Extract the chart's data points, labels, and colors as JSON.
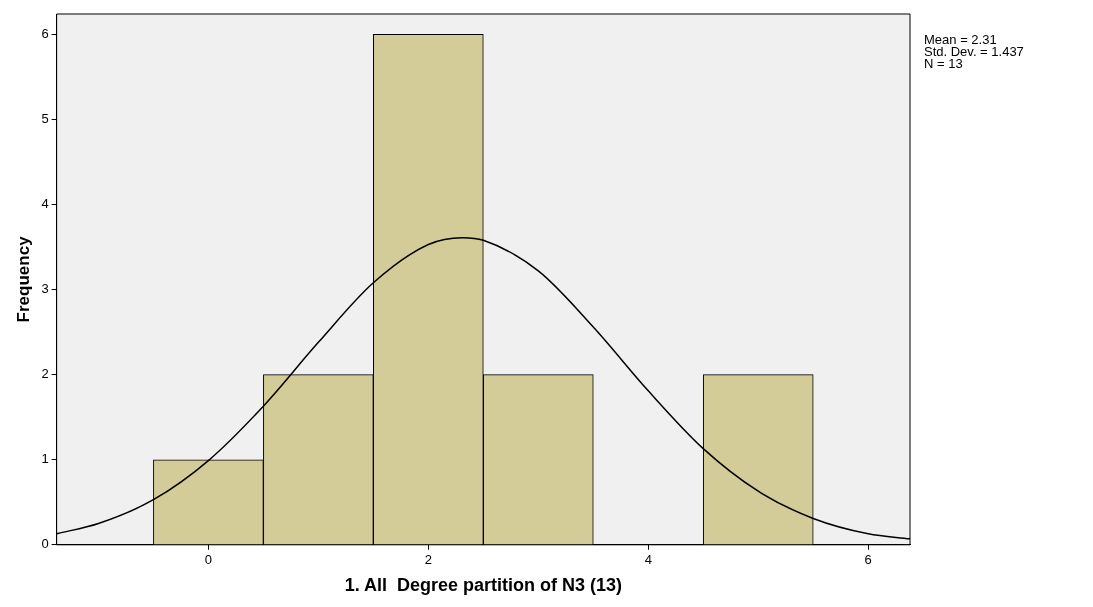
{
  "chart_data": {
    "type": "histogram",
    "xlabel": "1. All  Degree partition of N3 (13)",
    "ylabel": "Frequency",
    "bins": [
      -0.5,
      0.5,
      1.5,
      2.5,
      3.5,
      4.5,
      5.5
    ],
    "series": [
      {
        "type": "histogram",
        "color": "#d3cc98",
        "values": [
          1,
          2,
          6,
          2,
          0,
          2
        ]
      },
      {
        "type": "line",
        "color": "#000000",
        "x": [
          -1.38,
          -1,
          -0.5,
          0,
          0.5,
          1,
          1.5,
          2,
          2.31,
          2.5,
          3,
          3.5,
          4,
          4.5,
          5,
          5.5,
          6,
          6.38
        ],
        "values": [
          0.13,
          0.25,
          0.53,
          0.99,
          1.63,
          2.38,
          3.08,
          3.53,
          3.61,
          3.58,
          3.22,
          2.56,
          1.81,
          1.13,
          0.63,
          0.31,
          0.13,
          0.07
        ]
      }
    ],
    "xlim": [
      -1.38,
      6.38
    ],
    "xticks": [
      0,
      2,
      4,
      6
    ],
    "ylim": [
      0,
      6.24
    ],
    "yticks": [
      0,
      1,
      2,
      3,
      4,
      5,
      6
    ],
    "grid": false,
    "legend": false,
    "annotations": [
      "Mean = 2.31",
      "Std. Dev. = 1.437",
      "N = 13"
    ]
  }
}
